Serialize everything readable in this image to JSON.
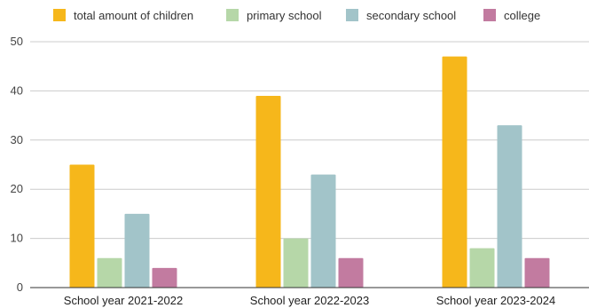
{
  "chart_data": {
    "type": "bar",
    "categories": [
      "School year 2021-2022",
      "School year 2022-2023",
      "School year 2023-2024"
    ],
    "series": [
      {
        "name": "total amount of children",
        "color": "#f6b71b",
        "values": [
          25,
          39,
          47
        ]
      },
      {
        "name": "primary school",
        "color": "#b6d7a8",
        "values": [
          6,
          10,
          8
        ]
      },
      {
        "name": "secondary school",
        "color": "#a2c4c9",
        "values": [
          15,
          23,
          33
        ]
      },
      {
        "name": "college",
        "color": "#c27ba0",
        "values": [
          4,
          6,
          6
        ]
      }
    ],
    "ylim": [
      0,
      50
    ],
    "yticks": [
      0,
      10,
      20,
      30,
      40,
      50
    ],
    "grid": true,
    "legend_position": "top"
  }
}
